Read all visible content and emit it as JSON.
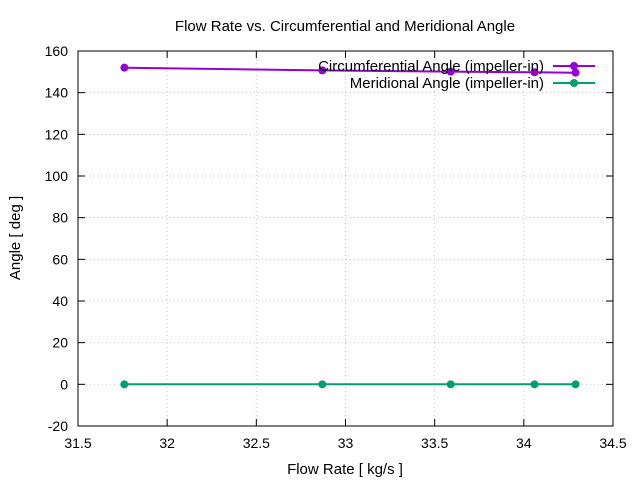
{
  "chart_data": {
    "type": "line",
    "title": "Flow Rate vs. Circumferential and Meridional Angle",
    "xlabel": "Flow Rate [ kg/s ]",
    "ylabel": "Angle [ deg ]",
    "xlim": [
      31.5,
      34.5
    ],
    "ylim": [
      -20,
      160
    ],
    "xticks": [
      31.5,
      32,
      32.5,
      33,
      33.5,
      34,
      34.5
    ],
    "yticks": [
      -20,
      0,
      20,
      40,
      60,
      80,
      100,
      120,
      140,
      160
    ],
    "xtick_labels": [
      "31.5",
      "32",
      "32.5",
      "33",
      "33.5",
      "34",
      "34.5"
    ],
    "ytick_labels": [
      "-20",
      "0",
      "20",
      "40",
      "60",
      "80",
      "100",
      "120",
      "140",
      "160"
    ],
    "grid": true,
    "legend_position": "top-right",
    "x": [
      31.76,
      32.87,
      33.59,
      34.06,
      34.29
    ],
    "series": [
      {
        "name": "Circumferential Angle (impeller-in)",
        "color": "#9400d3",
        "values": [
          152.0,
          150.7,
          150.1,
          149.8,
          149.6
        ]
      },
      {
        "name": "Meridional Angle (impeller-in)",
        "color": "#009e73",
        "values": [
          0,
          0,
          0,
          0,
          0
        ]
      }
    ]
  }
}
